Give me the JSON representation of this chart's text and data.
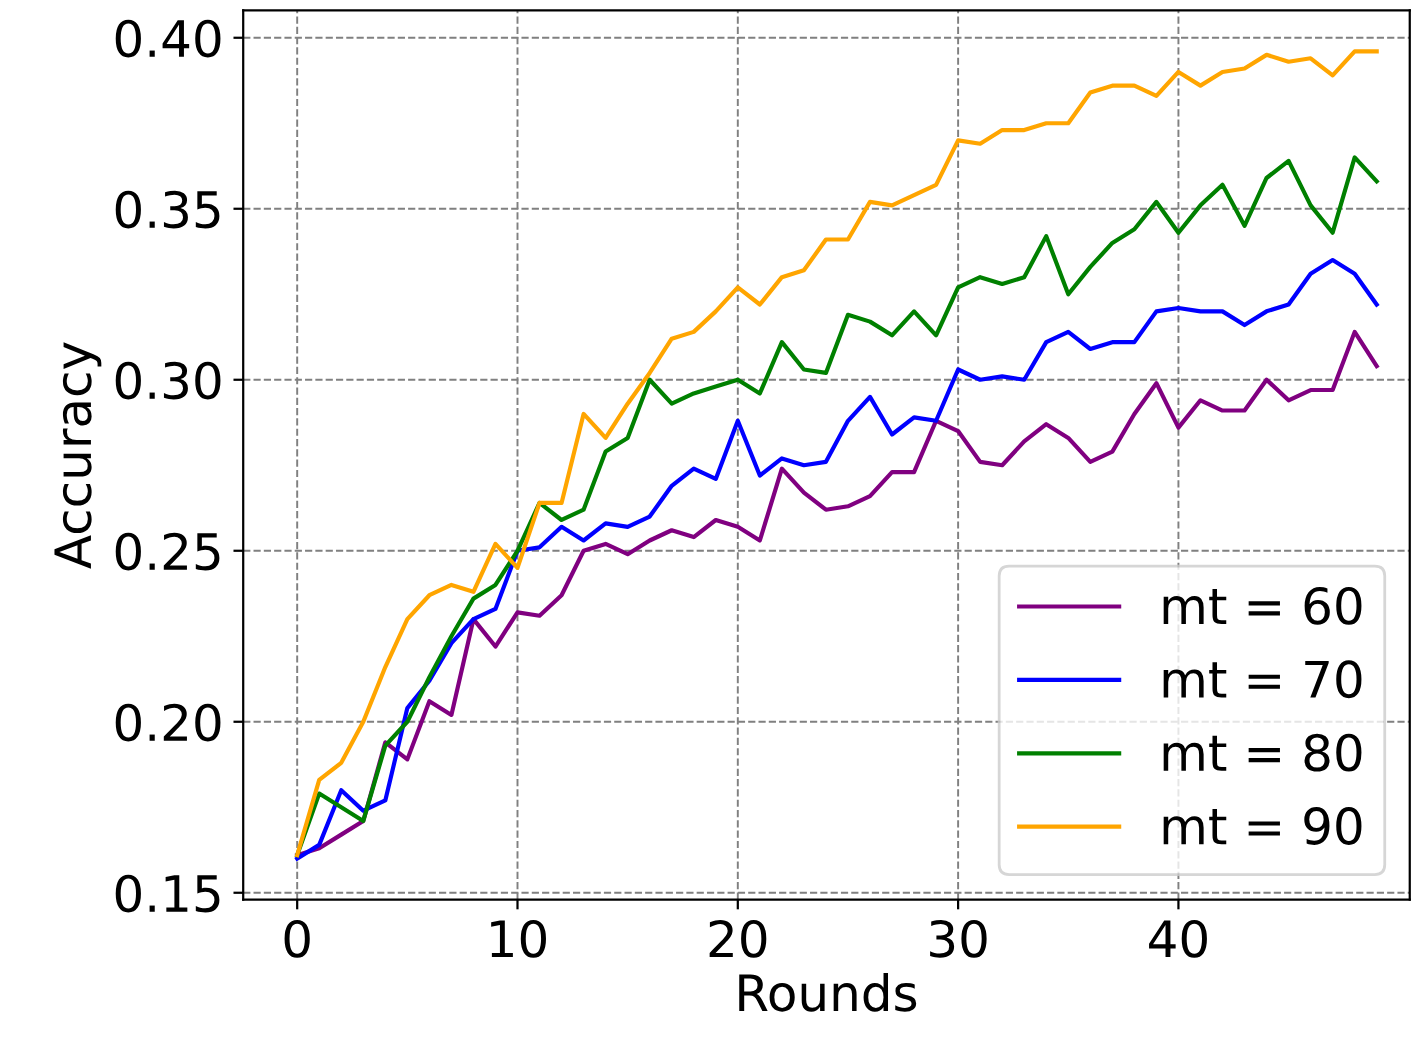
{
  "chart_data": {
    "type": "line",
    "xlabel": "Rounds",
    "ylabel": "Accuracy",
    "x": [
      0,
      1,
      2,
      3,
      4,
      5,
      6,
      7,
      8,
      9,
      10,
      11,
      12,
      13,
      14,
      15,
      16,
      17,
      18,
      19,
      20,
      21,
      22,
      23,
      24,
      25,
      26,
      27,
      28,
      29,
      30,
      31,
      32,
      33,
      34,
      35,
      36,
      37,
      38,
      39,
      40,
      41,
      42,
      43,
      44,
      45,
      46,
      47,
      48,
      49
    ],
    "series": [
      {
        "name": "mt = 60",
        "color": "#800080",
        "values": [
          0.161,
          0.163,
          0.167,
          0.171,
          0.194,
          0.189,
          0.206,
          0.202,
          0.23,
          0.222,
          0.232,
          0.231,
          0.237,
          0.25,
          0.252,
          0.249,
          0.253,
          0.256,
          0.254,
          0.259,
          0.257,
          0.253,
          0.274,
          0.267,
          0.262,
          0.263,
          0.266,
          0.273,
          0.273,
          0.288,
          0.285,
          0.276,
          0.275,
          0.282,
          0.287,
          0.283,
          0.276,
          0.279,
          0.29,
          0.299,
          0.286,
          0.294,
          0.291,
          0.291,
          0.3,
          0.294,
          0.297,
          0.297,
          0.314,
          0.304
        ]
      },
      {
        "name": "mt = 70",
        "color": "#0000ff",
        "values": [
          0.16,
          0.164,
          0.18,
          0.174,
          0.177,
          0.204,
          0.212,
          0.223,
          0.23,
          0.233,
          0.25,
          0.251,
          0.257,
          0.253,
          0.258,
          0.257,
          0.26,
          0.269,
          0.274,
          0.271,
          0.288,
          0.272,
          0.277,
          0.275,
          0.276,
          0.288,
          0.295,
          0.284,
          0.289,
          0.288,
          0.303,
          0.3,
          0.301,
          0.3,
          0.311,
          0.314,
          0.309,
          0.311,
          0.311,
          0.32,
          0.321,
          0.32,
          0.32,
          0.316,
          0.32,
          0.322,
          0.331,
          0.335,
          0.331,
          0.322
        ]
      },
      {
        "name": "mt = 80",
        "color": "#008000",
        "values": [
          0.161,
          0.179,
          0.175,
          0.171,
          0.193,
          0.2,
          0.213,
          0.225,
          0.236,
          0.24,
          0.25,
          0.264,
          0.259,
          0.262,
          0.279,
          0.283,
          0.3,
          0.293,
          0.296,
          0.298,
          0.3,
          0.296,
          0.311,
          0.303,
          0.302,
          0.319,
          0.317,
          0.313,
          0.32,
          0.313,
          0.327,
          0.33,
          0.328,
          0.33,
          0.342,
          0.325,
          0.333,
          0.34,
          0.344,
          0.352,
          0.343,
          0.351,
          0.357,
          0.345,
          0.359,
          0.364,
          0.351,
          0.343,
          0.365,
          0.358
        ]
      },
      {
        "name": "mt = 90",
        "color": "#ffa500",
        "values": [
          0.161,
          0.183,
          0.188,
          0.2,
          0.216,
          0.23,
          0.237,
          0.24,
          0.238,
          0.252,
          0.245,
          0.264,
          0.264,
          0.29,
          0.283,
          0.293,
          0.302,
          0.312,
          0.314,
          0.32,
          0.327,
          0.322,
          0.33,
          0.332,
          0.341,
          0.341,
          0.352,
          0.351,
          0.354,
          0.357,
          0.37,
          0.369,
          0.373,
          0.373,
          0.375,
          0.375,
          0.384,
          0.386,
          0.386,
          0.383,
          0.39,
          0.386,
          0.39,
          0.391,
          0.395,
          0.393,
          0.394,
          0.389,
          0.396,
          0.396
        ]
      }
    ],
    "xlim": [
      -2.45,
      50.5
    ],
    "ylim": [
      0.148,
      0.408
    ],
    "xticks": [
      0,
      10,
      20,
      30,
      40
    ],
    "yticks": [
      {
        "value": 0.15,
        "label": "0.15"
      },
      {
        "value": 0.2,
        "label": "0.20"
      },
      {
        "value": 0.25,
        "label": "0.25"
      },
      {
        "value": 0.3,
        "label": "0.30"
      },
      {
        "value": 0.35,
        "label": "0.35"
      },
      {
        "value": 0.4,
        "label": "0.40"
      }
    ],
    "grid": true,
    "legend": "bottom right",
    "marker": "none",
    "line_style": "solid"
  }
}
